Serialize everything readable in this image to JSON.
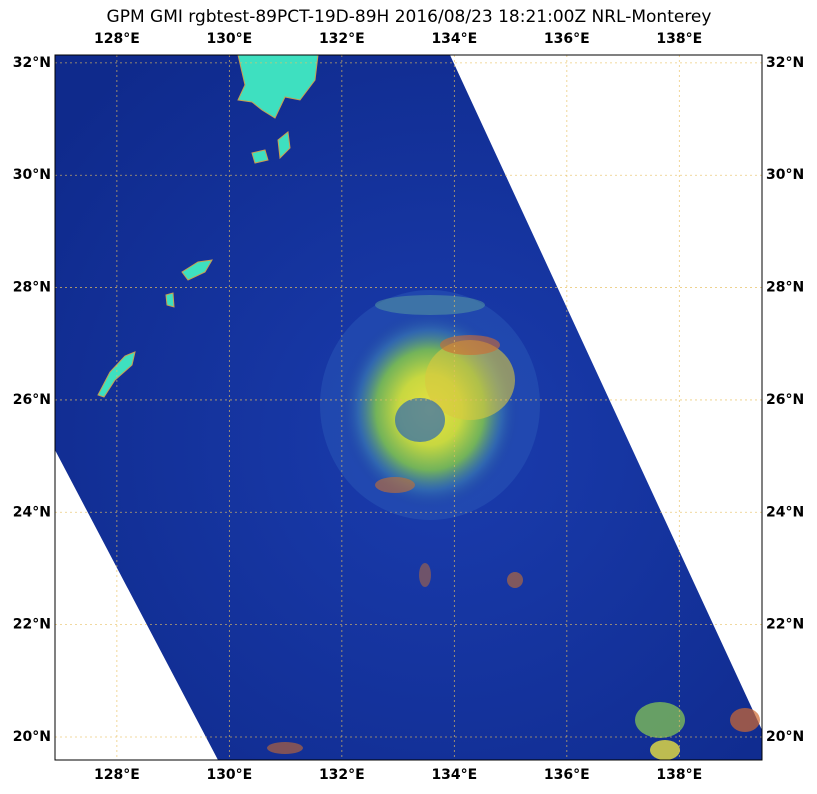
{
  "title": "GPM GMI rgbtest-89PCT-19D-89H 2016/08/23 18:21:00Z NRL-Monterey",
  "map": {
    "lon_range": [
      126.9,
      139.47
    ],
    "lat_range": [
      19.59,
      32.14
    ],
    "lon_ticks": [
      {
        "value": 128,
        "label": "128°E"
      },
      {
        "value": 130,
        "label": "130°E"
      },
      {
        "value": 132,
        "label": "132°E"
      },
      {
        "value": 134,
        "label": "134°E"
      },
      {
        "value": 136,
        "label": "136°E"
      },
      {
        "value": 138,
        "label": "138°E"
      }
    ],
    "lat_ticks": [
      {
        "value": 20,
        "label": "20°N"
      },
      {
        "value": 22,
        "label": "22°N"
      },
      {
        "value": 24,
        "label": "24°N"
      },
      {
        "value": 26,
        "label": "26°N"
      },
      {
        "value": 28,
        "label": "28°N"
      },
      {
        "value": 30,
        "label": "30°N"
      },
      {
        "value": 32,
        "label": "32°N"
      }
    ]
  }
}
